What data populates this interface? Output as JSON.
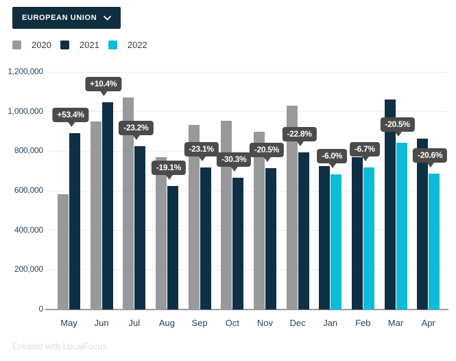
{
  "header": {
    "region_selector": {
      "label": "EUROPEAN UNION"
    }
  },
  "legend": [
    {
      "label": "2020",
      "color": "#97999b"
    },
    {
      "label": "2021",
      "color": "#0e3044"
    },
    {
      "label": "2022",
      "color": "#0cbcd8"
    }
  ],
  "colors": {
    "accent_navy": "#112e40",
    "bar_2020": "#97999b",
    "bar_2021": "#0e3044",
    "bar_2022": "#0cbcd8",
    "tooltip_bg": "#4b4b4b",
    "gridline": "#e9eaeb",
    "axis": "#9b9b9b",
    "tick_label": "#27455c",
    "credit": "#dedede"
  },
  "chart_data": {
    "type": "bar",
    "title": "",
    "xlabel": "",
    "ylabel": "",
    "categories": [
      "May",
      "Jun",
      "Jul",
      "Aug",
      "Sep",
      "Oct",
      "Nov",
      "Dec",
      "Jan",
      "Feb",
      "Mar",
      "Apr"
    ],
    "series": [
      {
        "name": "2020",
        "color": "#97999b",
        "values": [
          581000,
          950000,
          1072000,
          770000,
          934000,
          954000,
          897000,
          1031000,
          null,
          null,
          null,
          null
        ]
      },
      {
        "name": "2021",
        "color": "#0e3044",
        "values": [
          892000,
          1048000,
          824000,
          623000,
          719000,
          665000,
          713000,
          795000,
          726000,
          771000,
          1062000,
          862000
        ]
      },
      {
        "name": "2022",
        "color": "#0cbcd8",
        "values": [
          null,
          null,
          null,
          null,
          null,
          null,
          null,
          null,
          683000,
          719000,
          844000,
          685000
        ]
      }
    ],
    "annotations": [
      {
        "category": "May",
        "label": "+53.4%",
        "target_series": "2021"
      },
      {
        "category": "Jun",
        "label": "+10.4%",
        "target_series": "2021"
      },
      {
        "category": "Jul",
        "label": "-23.2%",
        "target_series": "2021"
      },
      {
        "category": "Aug",
        "label": "-19.1%",
        "target_series": "2021"
      },
      {
        "category": "Sep",
        "label": "-23.1%",
        "target_series": "2021"
      },
      {
        "category": "Oct",
        "label": "-30.3%",
        "target_series": "2021"
      },
      {
        "category": "Nov",
        "label": "-20.5%",
        "target_series": "2021"
      },
      {
        "category": "Dec",
        "label": "-22.8%",
        "target_series": "2021"
      },
      {
        "category": "Jan",
        "label": "-6.0%",
        "target_series": "2022"
      },
      {
        "category": "Feb",
        "label": "-6.7%",
        "target_series": "2022"
      },
      {
        "category": "Mar",
        "label": "-20.5%",
        "target_series": "2022"
      },
      {
        "category": "Apr",
        "label": "-20.6%",
        "target_series": "2022"
      }
    ],
    "ylim": [
      0,
      1200000
    ],
    "ytick_labels": [
      "0",
      "200,000",
      "400,000",
      "600,000",
      "800,000",
      "1,000,000",
      "1,200,000"
    ],
    "grid": true,
    "legend_position": "top-left"
  },
  "footer": {
    "credit": "Created with LocalFocus"
  }
}
